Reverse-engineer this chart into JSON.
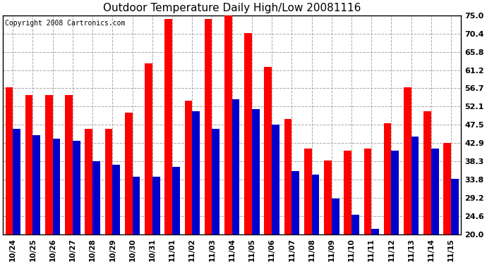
{
  "title": "Outdoor Temperature Daily High/Low 20081116",
  "copyright": "Copyright 2008 Cartronics.com",
  "categories": [
    "10/24",
    "10/25",
    "10/26",
    "10/27",
    "10/28",
    "10/29",
    "10/30",
    "10/31",
    "11/01",
    "11/02",
    "11/03",
    "11/04",
    "11/05",
    "11/06",
    "11/07",
    "11/08",
    "11/09",
    "11/10",
    "11/11",
    "11/12",
    "11/13",
    "11/14",
    "11/15"
  ],
  "highs": [
    57.0,
    55.0,
    55.0,
    55.0,
    46.5,
    46.5,
    50.5,
    63.0,
    74.0,
    53.5,
    74.0,
    75.0,
    70.5,
    62.0,
    49.0,
    41.5,
    38.5,
    41.0,
    41.5,
    48.0,
    57.0,
    51.0,
    43.0
  ],
  "lows": [
    46.5,
    45.0,
    44.0,
    43.5,
    38.3,
    37.5,
    34.5,
    34.5,
    37.0,
    51.0,
    46.5,
    54.0,
    51.5,
    47.5,
    36.0,
    35.0,
    29.0,
    25.0,
    21.5,
    41.0,
    44.5,
    41.5,
    34.0
  ],
  "high_color": "#ff0000",
  "low_color": "#0000cc",
  "bg_color": "#ffffff",
  "plot_bg_color": "#ffffff",
  "grid_color": "#aaaaaa",
  "title_fontsize": 11,
  "copyright_fontsize": 7,
  "tick_fontsize": 7.5,
  "ytick_fontsize": 8,
  "ylim": [
    20.0,
    75.0
  ],
  "yticks": [
    20.0,
    24.6,
    29.2,
    33.8,
    38.3,
    42.9,
    47.5,
    52.1,
    56.7,
    61.2,
    65.8,
    70.4,
    75.0
  ],
  "bar_width": 0.38
}
